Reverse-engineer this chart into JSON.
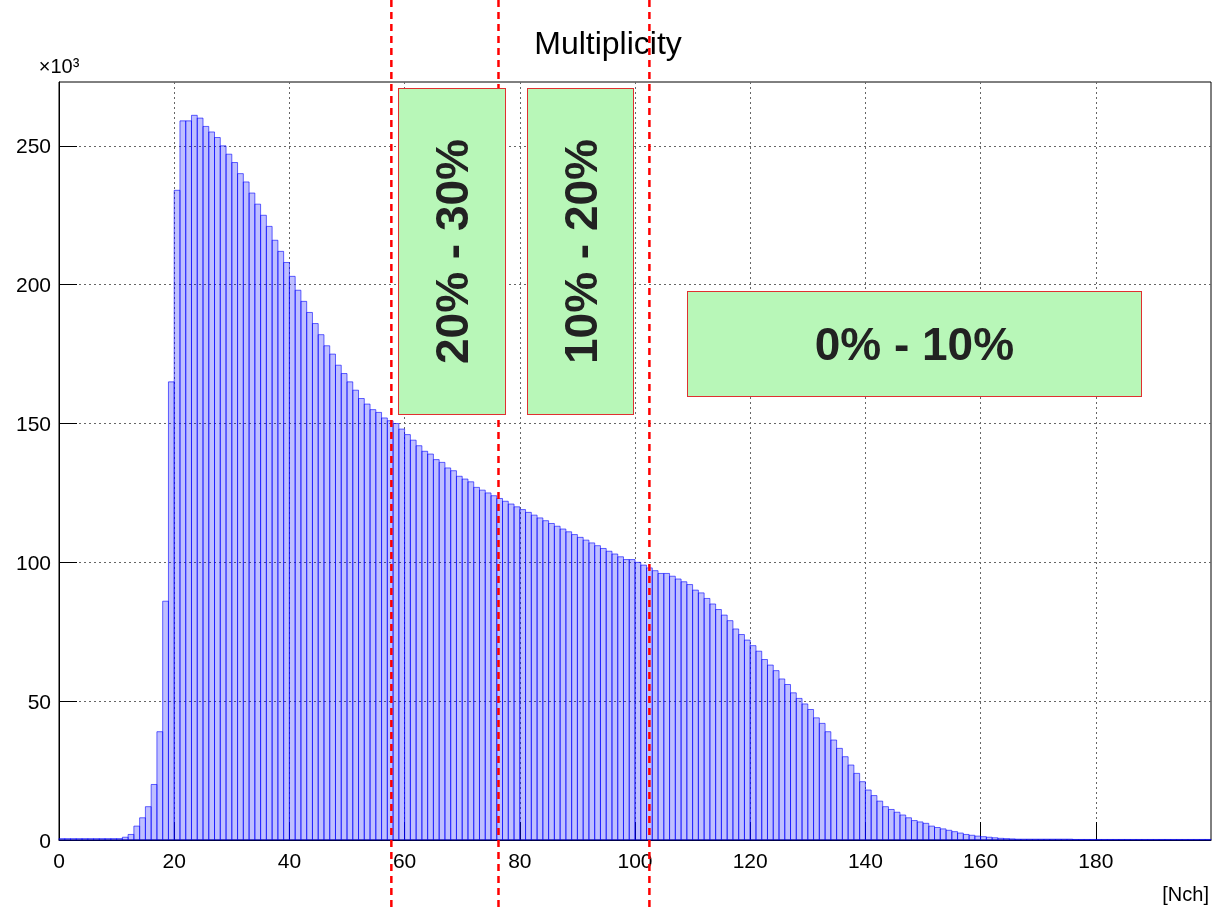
{
  "chart_data": {
    "type": "histogram",
    "title": "Multiplicity",
    "xlabel": "[Nch]",
    "ylabel": "×10³",
    "bins": [
      0,
      1,
      2,
      3,
      4,
      5,
      6,
      7,
      8,
      9,
      10,
      11,
      12,
      13,
      14,
      15,
      16,
      17,
      18,
      19,
      20,
      21,
      22,
      23,
      24,
      25,
      26,
      27,
      28,
      29,
      30,
      31,
      32,
      33,
      34,
      35,
      36,
      37,
      38,
      39,
      40,
      41,
      42,
      43,
      44,
      45,
      46,
      47,
      48,
      49,
      50,
      51,
      52,
      53,
      54,
      55,
      56,
      57,
      58,
      59,
      60,
      61,
      62,
      63,
      64,
      65,
      66,
      67,
      68,
      69,
      70,
      71,
      72,
      73,
      74,
      75,
      76,
      77,
      78,
      79,
      80,
      81,
      82,
      83,
      84,
      85,
      86,
      87,
      88,
      89,
      90,
      91,
      92,
      93,
      94,
      95,
      96,
      97,
      98,
      99,
      100,
      101,
      102,
      103,
      104,
      105,
      106,
      107,
      108,
      109,
      110,
      111,
      112,
      113,
      114,
      115,
      116,
      117,
      118,
      119,
      120,
      121,
      122,
      123,
      124,
      125,
      126,
      127,
      128,
      129,
      130,
      131,
      132,
      133,
      134,
      135,
      136,
      137,
      138,
      139,
      140,
      141,
      142,
      143,
      144,
      145,
      146,
      147,
      148,
      149,
      150,
      151,
      152,
      153,
      154,
      155,
      156,
      157,
      158,
      159,
      160,
      161,
      162,
      163,
      164,
      165,
      166,
      167,
      168,
      169,
      170,
      171,
      172,
      173,
      174,
      175,
      176,
      177,
      178,
      179,
      180,
      181,
      182,
      183,
      184,
      185,
      186,
      187,
      188,
      189,
      190,
      191,
      192,
      193,
      194,
      195,
      196,
      197,
      198,
      199,
      200
    ],
    "values": [
      0.5,
      0.5,
      0.5,
      0.5,
      0.5,
      0.5,
      0.5,
      0.5,
      0.5,
      0.5,
      0.5,
      1,
      2,
      5,
      8,
      12,
      20,
      39,
      86,
      165,
      234,
      259,
      259,
      261,
      260,
      257,
      255,
      253,
      250,
      247,
      244,
      240,
      237,
      233,
      229,
      225,
      221,
      216,
      212,
      208,
      203,
      198,
      194,
      190,
      186,
      182,
      178,
      175,
      171,
      168,
      165,
      162,
      159,
      157,
      155,
      154,
      152,
      151,
      150,
      148,
      146,
      144,
      142,
      140,
      139,
      137,
      136,
      134,
      133,
      131,
      130,
      129,
      127,
      126,
      125,
      124,
      123,
      122,
      121,
      120,
      119,
      118,
      117,
      116,
      115,
      114,
      113,
      112,
      111,
      110,
      109,
      108,
      107,
      106,
      105,
      104,
      103,
      102,
      101,
      101,
      100,
      99,
      98,
      97,
      96,
      96,
      95,
      94,
      93,
      92,
      90,
      89,
      87,
      85,
      83,
      81,
      79,
      76,
      74,
      72,
      70,
      68,
      65,
      63,
      61,
      58,
      56,
      53,
      51,
      49,
      47,
      44,
      42,
      39,
      36,
      33,
      30,
      27,
      24,
      21,
      18,
      16,
      14,
      12,
      11,
      10,
      9,
      8,
      7,
      6.5,
      6,
      5,
      4.5,
      4,
      3.5,
      3,
      2.5,
      2,
      1.7,
      1.4,
      1.2,
      1,
      0.8,
      0.6,
      0.5,
      0.4,
      0.3,
      0.3,
      0.3,
      0.3,
      0.3,
      0.3,
      0.3,
      0.3,
      0.3,
      0.3,
      0.2,
      0.2,
      0.2,
      0.2,
      0.2,
      0.2,
      0.2,
      0.2,
      0.2,
      0.2,
      0.2,
      0.2,
      0.2,
      0.2,
      0.2,
      0.2,
      0.2,
      0.2,
      0.2,
      0.2,
      0.2,
      0.2,
      0.2,
      0.2
    ],
    "color": "#0000ff",
    "xlim": [
      0,
      200
    ],
    "xticks": [
      0,
      20,
      40,
      60,
      80,
      100,
      120,
      140,
      160,
      180
    ],
    "ylim": [
      0,
      273
    ],
    "yticks": [
      0,
      50,
      100,
      150,
      200,
      250
    ],
    "grid": true,
    "ref_lines": [
      {
        "axis": "x",
        "value": 57.7,
        "color": "#ff0000",
        "line_style": "dashed"
      },
      {
        "axis": "x",
        "value": 76.3,
        "color": "#ff0000",
        "line_style": "dashed"
      },
      {
        "axis": "x",
        "value": 102.5,
        "color": "#ff0000",
        "line_style": "dashed"
      }
    ],
    "annotations": [
      "20% - 30%",
      "10% - 20%",
      "0% - 10%"
    ]
  }
}
